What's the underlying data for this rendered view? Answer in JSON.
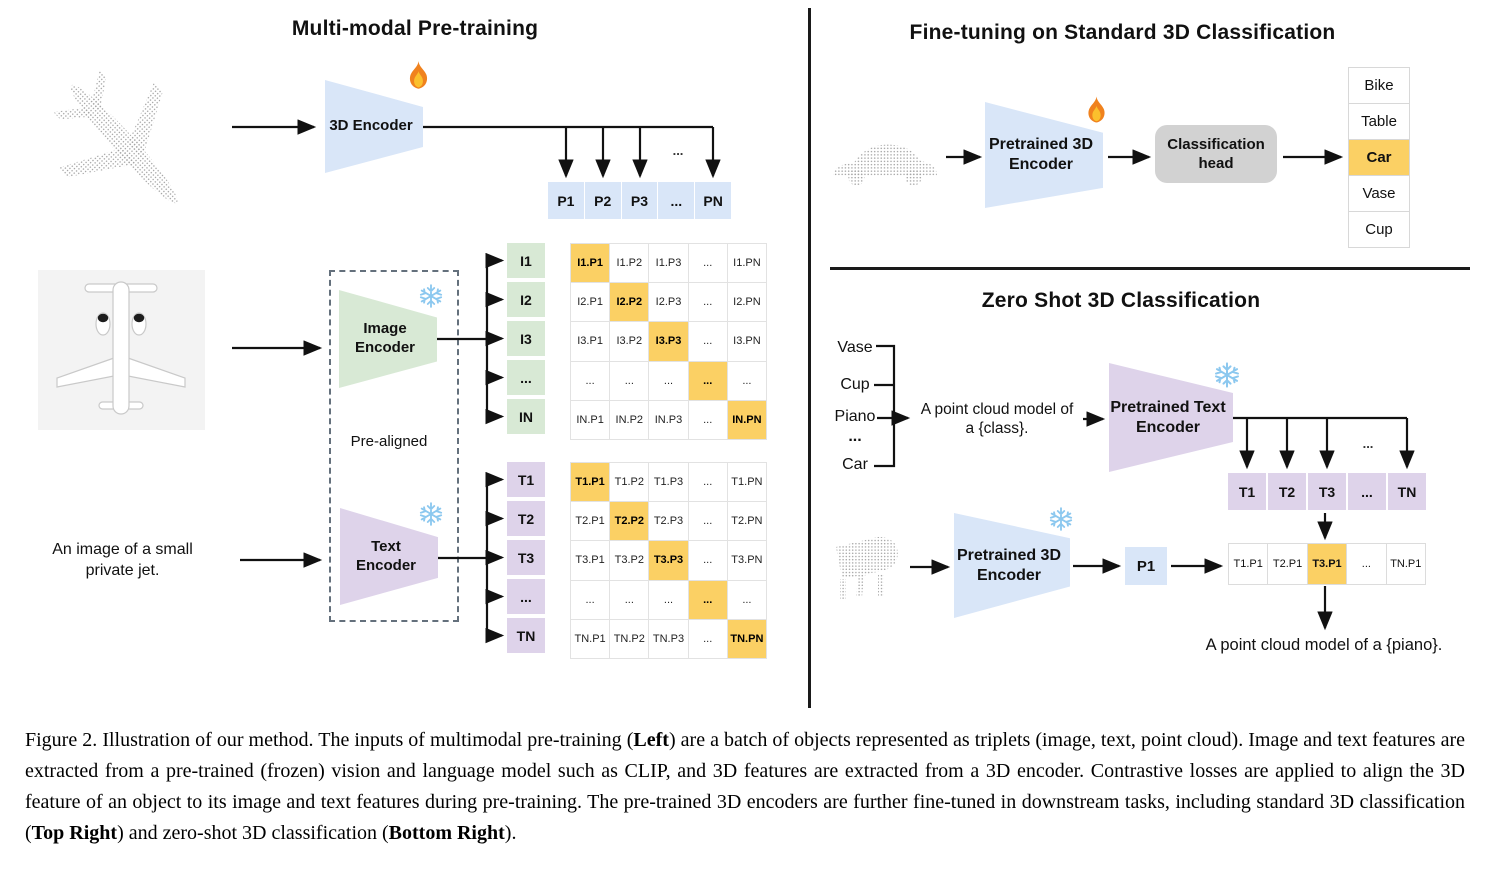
{
  "left": {
    "title": "Multi-modal Pre-training",
    "encoder_3d_label": "3D Encoder",
    "image_encoder_label": "Image\nEncoder",
    "text_encoder_label": "Text\nEncoder",
    "pre_aligned_label": "Pre-aligned",
    "text_input": "An image of a small\nprivate jet.",
    "branch_ellipsis": "...",
    "p_row": [
      "P1",
      "P2",
      "P3",
      "...",
      "PN"
    ],
    "image_rows": [
      "I1",
      "I2",
      "I3",
      "...",
      "IN"
    ],
    "image_matrix": [
      [
        "I1.P1",
        "I1.P2",
        "I1.P3",
        "...",
        "I1.PN"
      ],
      [
        "I2.P1",
        "I2.P2",
        "I2.P3",
        "...",
        "I2.PN"
      ],
      [
        "I3.P1",
        "I3.P2",
        "I3.P3",
        "...",
        "I3.PN"
      ],
      [
        "...",
        "...",
        "...",
        "...",
        "..."
      ],
      [
        "IN.P1",
        "IN.P2",
        "IN.P3",
        "...",
        "IN.PN"
      ]
    ],
    "text_rows": [
      "T1",
      "T2",
      "T3",
      "...",
      "TN"
    ],
    "text_matrix": [
      [
        "T1.P1",
        "T1.P2",
        "T1.P3",
        "...",
        "T1.PN"
      ],
      [
        "T2.P1",
        "T2.P2",
        "T2.P3",
        "...",
        "T2.PN"
      ],
      [
        "T3.P1",
        "T3.P2",
        "T3.P3",
        "...",
        "T3.PN"
      ],
      [
        "...",
        "...",
        "...",
        "...",
        "..."
      ],
      [
        "TN.P1",
        "TN.P2",
        "TN.P3",
        "...",
        "TN.PN"
      ]
    ]
  },
  "top_right": {
    "title": "Fine-tuning on Standard 3D Classification",
    "encoder_label": "Pretrained 3D\nEncoder",
    "head_label": "Classification\nhead",
    "classes": [
      "Bike",
      "Table",
      "Car",
      "Vase",
      "Cup"
    ],
    "predicted_class": "Car",
    "predicted_index": 2
  },
  "bottom_right": {
    "title": "Zero Shot 3D Classification",
    "classes": [
      "Vase",
      "Cup",
      "Piano",
      "...",
      "Car"
    ],
    "prompt": "A point cloud model of\na {class}.",
    "text_encoder_label": "Pretrained Text\nEncoder",
    "t_row": [
      "T1",
      "T2",
      "T3",
      "...",
      "TN"
    ],
    "branch_ellipsis": "...",
    "encoder_3d_label": "Pretrained 3D\nEncoder",
    "p_cell": "P1",
    "score_row": [
      "T1.P1",
      "T2.P1",
      "T3.P1",
      "...",
      "TN.P1"
    ],
    "highlight_index": 2,
    "result_text": "A point cloud model of a {piano}."
  },
  "icons": {
    "trainable": "flame-icon",
    "frozen": "snowflake-icon"
  },
  "colors": {
    "highlight_orange": "#FBD064",
    "encoder_blue": "#D9E6F8",
    "encoder_green": "#D8E9D5",
    "encoder_purple": "#DED3EA",
    "head_gray": "#D2D2D2"
  },
  "caption": {
    "segments": [
      {
        "text": "Figure 2. Illustration of our method. The inputs of multimodal pre-training (",
        "bold": false
      },
      {
        "text": "Left",
        "bold": true
      },
      {
        "text": ") are a batch of objects represented as triplets (image, text, point cloud). Image and text features are extracted from a pre-trained (frozen) vision and language model such as CLIP, and 3D features are extracted from a 3D encoder. Contrastive losses are applied to align the 3D feature of an object to its image and text features during pre-training. The pre-trained 3D encoders are further fine-tuned in downstream tasks, including standard 3D classification (",
        "bold": false
      },
      {
        "text": "Top Right",
        "bold": true
      },
      {
        "text": ") and zero-shot 3D classification (",
        "bold": false
      },
      {
        "text": "Bottom Right",
        "bold": true
      },
      {
        "text": ").",
        "bold": false
      }
    ]
  }
}
